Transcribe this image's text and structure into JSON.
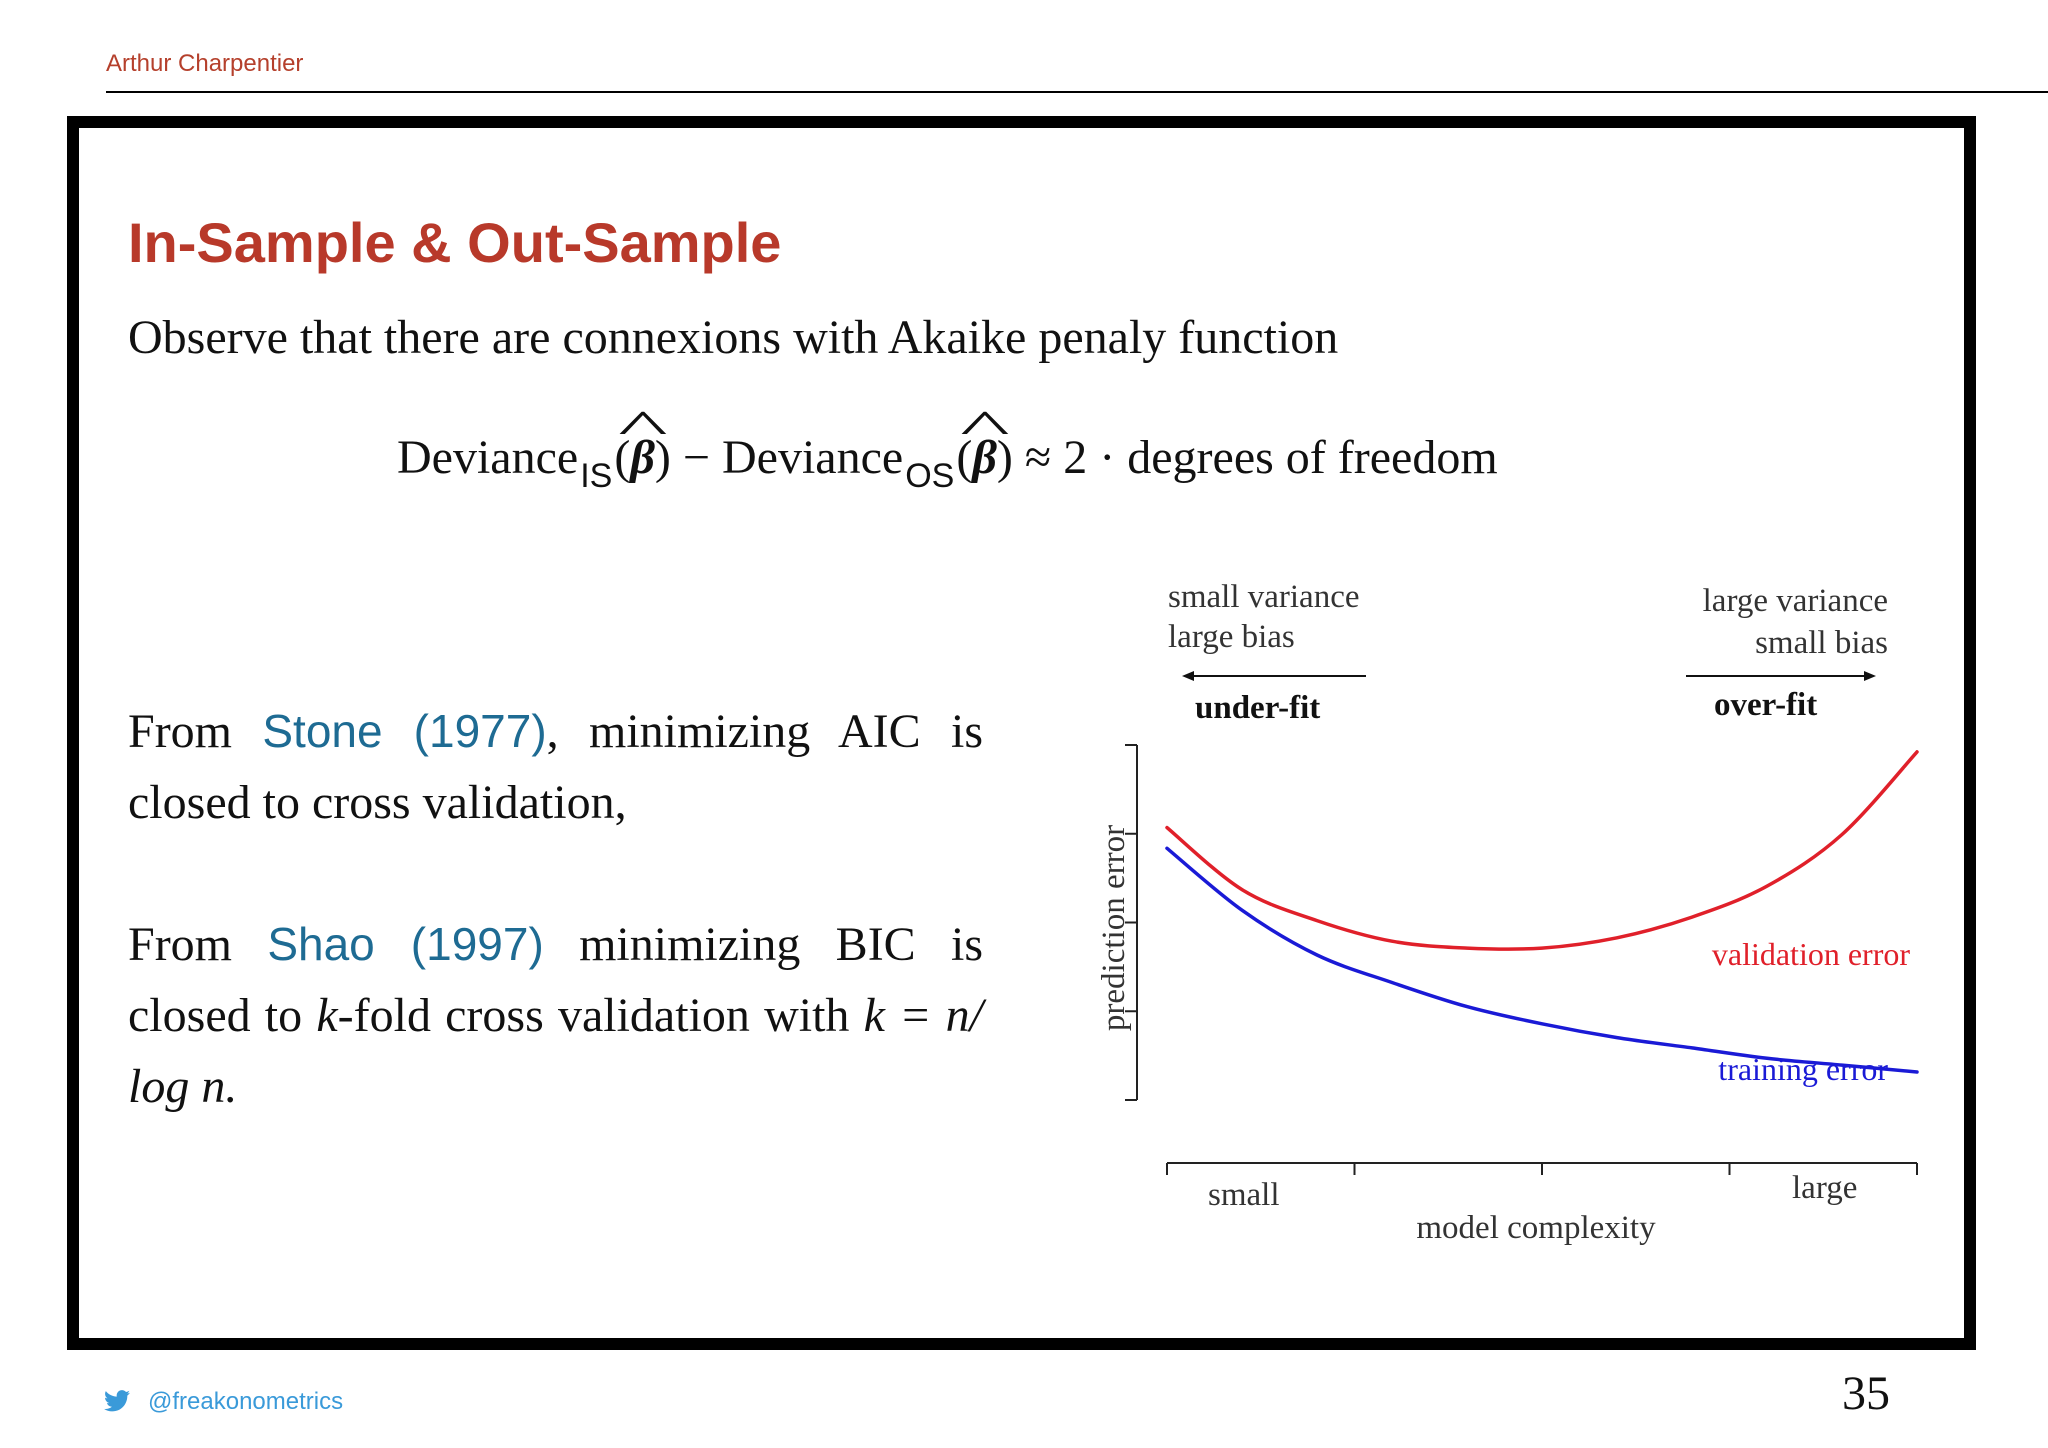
{
  "header": {
    "author": "Arthur Charpentier"
  },
  "slide": {
    "title": "In-Sample & Out-Sample",
    "intro": "Observe that there are connexions with Akaike penaly function",
    "equation": {
      "term1": "Deviance",
      "sub1": "IS",
      "beta": "β",
      "minus": "−",
      "term2": "Deviance",
      "sub2": "OS",
      "rhs": "≈ 2 · degrees of freedom"
    },
    "para1": {
      "prefix": "From ",
      "citation": "Stone (1977)",
      "rest": ", minimizing AIC is closed to cross validation,"
    },
    "para2": {
      "prefix": "From ",
      "citation": "Shao (1997)",
      "rest": " minimizing BIC is closed to ",
      "k": "k",
      "rest2": "-fold cross validation with ",
      "formula": "k = n/ log n."
    }
  },
  "chart_data": {
    "type": "line",
    "x": [
      0,
      0.1,
      0.2,
      0.3,
      0.4,
      0.5,
      0.6,
      0.7,
      0.8,
      0.9,
      1.0
    ],
    "series": [
      {
        "name": "validation error",
        "values": [
          0.8,
          0.62,
          0.53,
          0.47,
          0.45,
          0.45,
          0.48,
          0.54,
          0.63,
          0.78,
          1.02
        ],
        "color": "#e0202a"
      },
      {
        "name": "training error",
        "values": [
          0.74,
          0.56,
          0.43,
          0.35,
          0.28,
          0.23,
          0.19,
          0.16,
          0.13,
          0.11,
          0.09
        ],
        "color": "#1a1ad6"
      }
    ],
    "xlabel": "model complexity",
    "ylabel": "prediction error",
    "x_tick_labels": {
      "left": "small",
      "right": "large"
    },
    "annotations": {
      "left": {
        "line1": "small variance",
        "line2": "large bias",
        "label": "under-fit"
      },
      "right": {
        "line1": "large variance",
        "line2": "small bias",
        "label": "over-fit"
      }
    },
    "xlim": [
      0,
      1
    ],
    "ylim": [
      0,
      1.04
    ],
    "grid": false,
    "legend": "inline labels"
  },
  "footer": {
    "handle": "@freakonometrics",
    "page": "35",
    "twitter_color": "#3a9ad9"
  }
}
